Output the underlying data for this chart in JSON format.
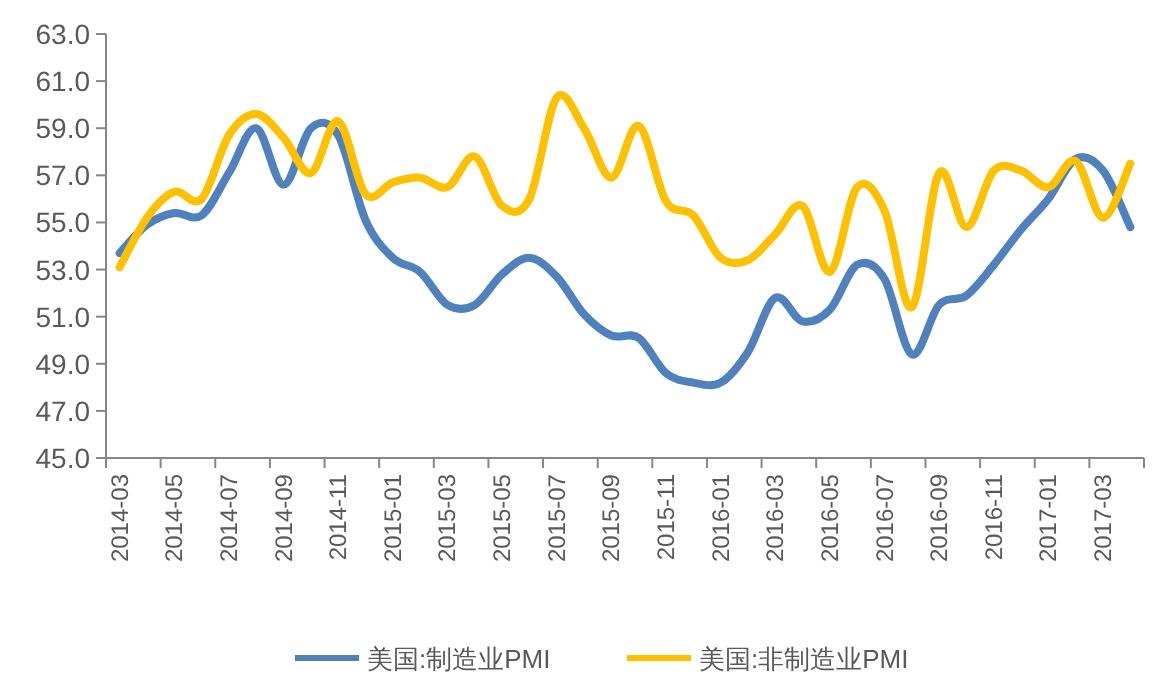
{
  "chart_data": {
    "type": "line",
    "categories": [
      "2014-03",
      null,
      "2014-05",
      null,
      "2014-07",
      null,
      "2014-09",
      null,
      "2014-11",
      null,
      "2015-01",
      null,
      "2015-03",
      null,
      "2015-05",
      null,
      "2015-07",
      null,
      "2015-09",
      null,
      "2015-11",
      null,
      "2016-01",
      null,
      "2016-03",
      null,
      "2016-05",
      null,
      "2016-07",
      null,
      "2016-09",
      null,
      "2016-11",
      null,
      "2017-01",
      null,
      "2017-03",
      null
    ],
    "series": [
      {
        "name": "美国:制造业PMI",
        "color": "#4f81bd",
        "values": [
          53.7,
          54.9,
          55.4,
          55.3,
          57.1,
          59.0,
          56.6,
          59.0,
          58.7,
          55.1,
          53.5,
          52.9,
          51.5,
          51.5,
          52.8,
          53.5,
          52.7,
          51.1,
          50.2,
          50.1,
          48.6,
          48.2,
          48.2,
          49.5,
          51.8,
          50.8,
          51.3,
          53.2,
          52.6,
          49.4,
          51.5,
          51.9,
          53.2,
          54.7,
          56.0,
          57.7,
          57.2,
          54.8
        ]
      },
      {
        "name": "美国:非制造业PMI",
        "color": "#ffc000",
        "values": [
          53.1,
          55.2,
          56.3,
          56.0,
          58.7,
          59.6,
          58.6,
          57.1,
          59.3,
          56.2,
          56.7,
          56.9,
          56.5,
          57.8,
          55.7,
          56.0,
          60.3,
          59.0,
          56.9,
          59.1,
          55.9,
          55.3,
          53.5,
          53.4,
          54.5,
          55.7,
          52.9,
          56.5,
          55.5,
          51.4,
          57.1,
          54.8,
          57.2,
          57.2,
          56.5,
          57.6,
          55.2,
          57.5
        ]
      }
    ],
    "ylim": [
      45,
      63
    ],
    "yticks": [
      {
        "value": 45,
        "label": "45.0"
      },
      {
        "value": 47,
        "label": "47.0"
      },
      {
        "value": 49,
        "label": "49.0"
      },
      {
        "value": 51,
        "label": "51.0"
      },
      {
        "value": 53,
        "label": "53.0"
      },
      {
        "value": 55,
        "label": "55.0"
      },
      {
        "value": 57,
        "label": "57.0"
      },
      {
        "value": 59,
        "label": "59.0"
      },
      {
        "value": 61,
        "label": "61.0"
      },
      {
        "value": 63,
        "label": "63.0"
      }
    ],
    "grid": false,
    "legend": "bottom",
    "marker": "none",
    "line_style": "solid"
  }
}
